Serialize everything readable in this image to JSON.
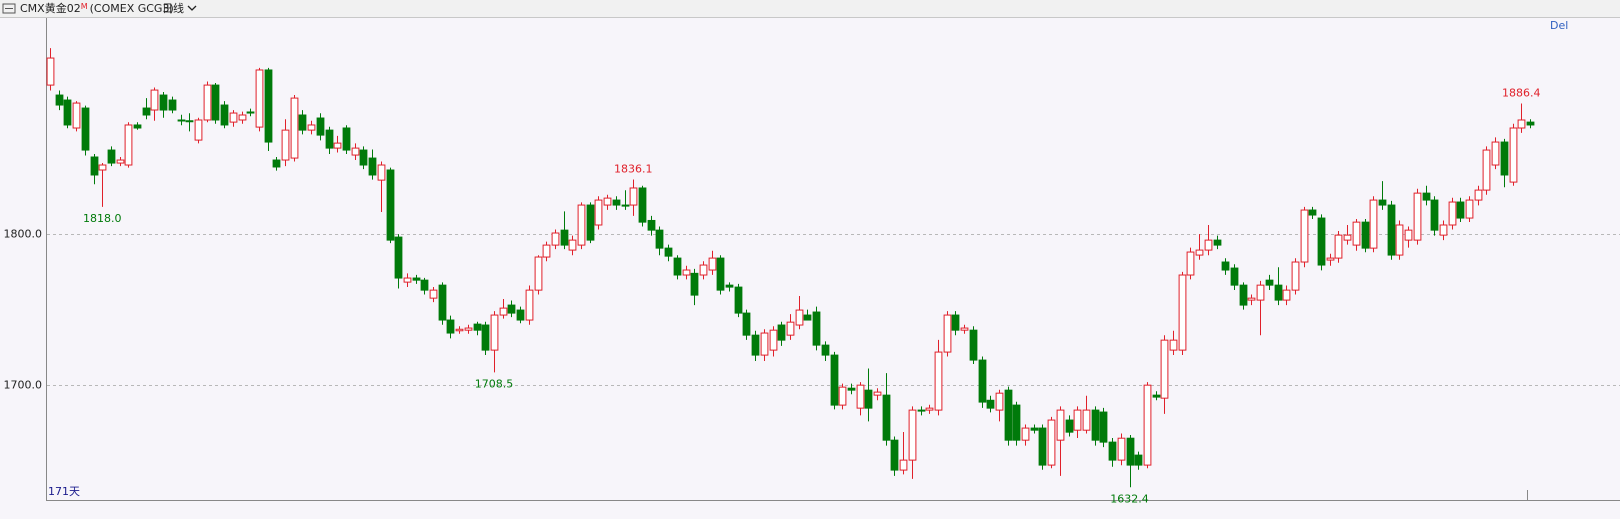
{
  "chart_data": {
    "type": "candlestick",
    "title": "CMX黄金02",
    "title_mark": "M",
    "subtitle": "(COMEX GCG3)",
    "period": "日线",
    "corner_label": "Del",
    "count_label": "171天",
    "up_color": "#e0202a",
    "down_color": "#007a0a",
    "grid": true,
    "ylim": [
      1624,
      1943
    ],
    "yticks": [
      {
        "value": 1700,
        "label": "1700.0"
      },
      {
        "value": 1800,
        "label": "1800.0"
      }
    ],
    "open": [
      1898.6,
      1892,
      1888.7,
      1870.2,
      1883.4,
      1851,
      1842.4,
      1855.6,
      1847,
      1845.7,
      1872.2,
      1883.4,
      1882.1,
      1892,
      1888.7,
      1875.5,
      1875,
      1862.2,
      1875.5,
      1898.6,
      1885.4,
      1874.1,
      1875.5,
      1880.8,
      1870.8,
      1908.6,
      1849,
      1849,
      1850.3,
      1878.8,
      1868.8,
      1876.8,
      1868.8,
      1856.9,
      1870.2,
      1852.3,
      1855.6,
      1850.3,
      1835.7,
      1842.4,
      1798,
      1768.2,
      1770.9,
      1769.5,
      1757.6,
      1766.2,
      1743.1,
      1736,
      1736.4,
      1740.4,
      1739.8,
      1723.2,
      1746.4,
      1753,
      1749.7,
      1743.1,
      1762.9,
      1784.8,
      1792.7,
      1802.6,
      1789.4,
      1792.7,
      1819.2,
      1806,
      1819.2,
      1822.5,
      1819.2,
      1819.2,
      1830.5,
      1809,
      1802.6,
      1790.7,
      1784.1,
      1772.9,
      1774,
      1772.9,
      1776.2,
      1784.1,
      1766.2,
      1764.9,
      1747.7,
      1733.1,
      1719.9,
      1723.2,
      1739.8,
      1733.1,
      1739.8,
      1746.4,
      1748.4,
      1726.5,
      1719.9,
      1686.8,
      1698,
      1684.8,
      1696.7,
      1693.4,
      1693.4,
      1663.6,
      1643.8,
      1650.4,
      1683.5,
      1683.5,
      1683.5,
      1721.9,
      1746.4,
      1736.4,
      1736.4,
      1716.6,
      1690,
      1683.5,
      1696.7,
      1686.8,
      1663.6,
      1671.6,
      1671.6,
      1647.1,
      1663.6,
      1676.9,
      1670.2,
      1670.2,
      1683.5,
      1682.2,
      1662.3,
      1650.4,
      1664.9,
      1653.7,
      1647.1,
      1693.4,
      1691.4,
      1723.2,
      1723.2,
      1772.9,
      1786.1,
      1789.4,
      1796,
      1781.5,
      1777.5,
      1766.2,
      1756.3,
      1756.3,
      1769.5,
      1766.2,
      1756.3,
      1762.9,
      1781.5,
      1815.9,
      1810.6,
      1782.8,
      1784.1,
      1796,
      1792.7,
      1807.9,
      1790.7,
      1822.5,
      1819.2,
      1786.1,
      1796,
      1796,
      1827.1,
      1822.5,
      1799.3,
      1806,
      1821.2,
      1810.6,
      1822.5,
      1829.1,
      1845.7,
      1860.9,
      1834.4,
      1870.2,
      1874.1
    ],
    "high": [
      1923.1,
      1895,
      1891,
      1888,
      1885,
      1853,
      1847,
      1858,
      1851,
      1874,
      1874,
      1890,
      1897,
      1894,
      1891,
      1879,
      1880,
      1877,
      1901,
      1900,
      1888,
      1882,
      1881,
      1883,
      1910,
      1910,
      1851,
      1876,
      1892,
      1882,
      1875,
      1880,
      1871,
      1865,
      1872,
      1860,
      1858,
      1856,
      1848,
      1844,
      1800,
      1774,
      1773,
      1771,
      1765,
      1768,
      1746,
      1739,
      1740,
      1742,
      1742,
      1749,
      1757,
      1756,
      1752,
      1766,
      1786,
      1795,
      1803,
      1815,
      1799,
      1821,
      1821,
      1825,
      1826,
      1825,
      1829,
      1836.1,
      1832,
      1812,
      1805,
      1793,
      1786,
      1779,
      1777,
      1782,
      1789,
      1786,
      1768,
      1767,
      1750,
      1736,
      1737,
      1739,
      1742,
      1747,
      1759,
      1750,
      1752,
      1729,
      1722,
      1701,
      1701,
      1702,
      1711,
      1698,
      1708,
      1666,
      1669,
      1686,
      1686,
      1687,
      1730,
      1749,
      1749,
      1740,
      1739,
      1719,
      1693,
      1697,
      1699,
      1689,
      1674,
      1674,
      1674,
      1679,
      1686,
      1680,
      1686,
      1693,
      1686,
      1685,
      1665,
      1668,
      1667,
      1656,
      1702,
      1696,
      1733,
      1736,
      1775,
      1791,
      1800,
      1806,
      1799,
      1784,
      1780,
      1768,
      1760,
      1769,
      1773,
      1778,
      1766,
      1784,
      1818,
      1818,
      1813,
      1787,
      1802,
      1806,
      1810,
      1810,
      1825,
      1835,
      1822,
      1809,
      1805,
      1830,
      1832,
      1825,
      1809,
      1824,
      1824,
      1825,
      1832,
      1858,
      1864,
      1863,
      1873,
      1886.4,
      1876
    ],
    "low": [
      1895,
      1882,
      1870,
      1868,
      1852,
      1833,
      1818.0,
      1845,
      1845,
      1844,
      1869,
      1876,
      1875,
      1877,
      1880,
      1872,
      1868,
      1860,
      1874,
      1873,
      1870,
      1871,
      1873,
      1878,
      1868,
      1855,
      1842,
      1845,
      1848,
      1866,
      1866,
      1862,
      1853,
      1854,
      1853,
      1849,
      1843,
      1836,
      1814.6,
      1794,
      1764,
      1765,
      1767,
      1760,
      1755,
      1740,
      1731,
      1734,
      1734,
      1733,
      1720,
      1708.5,
      1744,
      1745,
      1741,
      1740,
      1760,
      1782,
      1790,
      1790,
      1786,
      1790,
      1794,
      1803,
      1816,
      1816,
      1816,
      1812,
      1805,
      1799,
      1786,
      1782,
      1770,
      1770,
      1753,
      1770,
      1773,
      1760,
      1762,
      1745,
      1730,
      1716,
      1716,
      1719,
      1726,
      1730,
      1737,
      1743,
      1723,
      1716,
      1684,
      1684,
      1694,
      1680,
      1676,
      1690,
      1660,
      1640,
      1641,
      1638,
      1680,
      1681,
      1680,
      1719,
      1733,
      1734,
      1714,
      1685,
      1682,
      1676,
      1660,
      1660,
      1660,
      1668,
      1644,
      1645,
      1640,
      1666,
      1665,
      1668,
      1660,
      1659,
      1646,
      1647,
      1632.4,
      1644,
      1645,
      1690,
      1681,
      1720,
      1720,
      1770,
      1783,
      1786,
      1790,
      1773,
      1763,
      1750,
      1753,
      1733,
      1763,
      1753,
      1753,
      1760,
      1778,
      1810,
      1776,
      1779,
      1781,
      1793,
      1789,
      1788,
      1788,
      1816,
      1783,
      1783,
      1791,
      1793,
      1819,
      1799,
      1796,
      1803,
      1808,
      1808,
      1819,
      1826,
      1843,
      1831,
      1832,
      1867,
      1870
    ],
    "close": [
      1916.5,
      1885.4,
      1872.2,
      1886.7,
      1855.6,
      1839.1,
      1845.7,
      1847,
      1849,
      1872.2,
      1870.2,
      1878.8,
      1895.3,
      1882.1,
      1882.1,
      1875,
      1874.5,
      1875.5,
      1898.6,
      1875.5,
      1872.2,
      1880.1,
      1878.8,
      1880.1,
      1908.6,
      1860.9,
      1844.4,
      1868.8,
      1890,
      1868.8,
      1872.2,
      1865.5,
      1856.9,
      1860.2,
      1855.6,
      1856.9,
      1845.7,
      1839.1,
      1845.7,
      1796,
      1770.9,
      1770.9,
      1769.5,
      1762.9,
      1762.9,
      1743.1,
      1734.5,
      1737,
      1737.8,
      1736.4,
      1723.2,
      1746.4,
      1751,
      1747.7,
      1743.1,
      1762.9,
      1784.8,
      1792.7,
      1800.7,
      1792.7,
      1796,
      1819.2,
      1796,
      1822.5,
      1823.8,
      1819.2,
      1818.5,
      1830.5,
      1807.9,
      1802.6,
      1790.7,
      1785.4,
      1772.9,
      1776.2,
      1759.6,
      1779.5,
      1784.1,
      1762.9,
      1764.9,
      1747.7,
      1733.1,
      1719.9,
      1734.5,
      1736.4,
      1729.8,
      1741.7,
      1749.7,
      1743.1,
      1726.5,
      1719.9,
      1686.8,
      1698.7,
      1696.7,
      1700,
      1684.8,
      1695.4,
      1663.6,
      1643.8,
      1650.4,
      1683.5,
      1683,
      1684.8,
      1721.9,
      1746.4,
      1736.4,
      1737.8,
      1716.6,
      1688.8,
      1684.8,
      1694.7,
      1663.6,
      1663.6,
      1671.6,
      1670.2,
      1647.1,
      1676.9,
      1683.5,
      1668.9,
      1683.5,
      1683.5,
      1663.6,
      1662.3,
      1650.4,
      1664.9,
      1647.1,
      1647.1,
      1700,
      1692.1,
      1729.8,
      1729.8,
      1772.9,
      1788.1,
      1789.4,
      1796,
      1792.7,
      1776.2,
      1766.2,
      1753,
      1757.6,
      1766.2,
      1766.2,
      1756.3,
      1762.9,
      1781.5,
      1815.9,
      1812.6,
      1779.5,
      1784.1,
      1799.3,
      1799.3,
      1807.9,
      1790.7,
      1822.5,
      1819.2,
      1786.1,
      1806,
      1802.6,
      1827.1,
      1822.5,
      1802.6,
      1806,
      1821.2,
      1810.6,
      1822.5,
      1829.1,
      1855.6,
      1860.9,
      1839.1,
      1870.2,
      1875.5,
      1872.2
    ],
    "annotations": [
      {
        "value": 1818.0,
        "label": "1818.0"
      },
      {
        "value": 1836.1,
        "label": "1836.1"
      },
      {
        "value": 1708.5,
        "label": "1708.5"
      },
      {
        "value": 1632.4,
        "label": "1632.4"
      },
      {
        "value": 1886.4,
        "label": "1886.4"
      }
    ]
  }
}
